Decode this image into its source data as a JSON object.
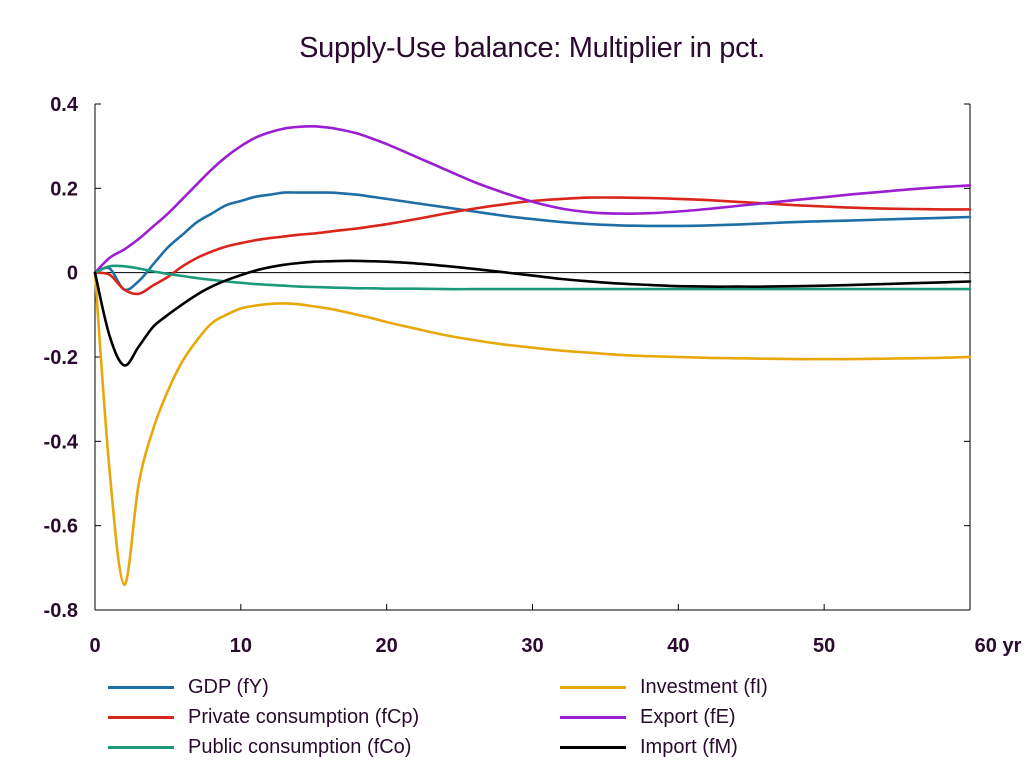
{
  "chart_data": {
    "type": "line",
    "title": "Supply-Use balance: Multiplier in pct.",
    "xlabel": "",
    "ylabel": "",
    "x_unit_label": "yr",
    "xlim": [
      0,
      60
    ],
    "ylim": [
      -0.8,
      0.4
    ],
    "x_ticks": [
      0,
      10,
      20,
      30,
      40,
      50,
      60
    ],
    "x_tick_labels": [
      "0",
      "10",
      "20",
      "30",
      "40",
      "50",
      "60 yr"
    ],
    "y_ticks": [
      0.4,
      0.2,
      0,
      -0.2,
      -0.4,
      -0.6,
      -0.8
    ],
    "y_tick_labels": [
      "0.4",
      "0.2",
      "0",
      "-0.2",
      "-0.4",
      "-0.6",
      "-0.8"
    ],
    "grid": false,
    "zero_line": true,
    "legend_position": "bottom",
    "x": [
      0,
      1,
      2,
      3,
      4,
      5,
      6,
      7,
      8,
      9,
      10,
      11,
      12,
      13,
      14,
      15,
      16,
      17,
      18,
      19,
      20,
      22,
      24,
      26,
      28,
      30,
      32,
      34,
      36,
      38,
      40,
      42,
      44,
      46,
      48,
      50,
      52,
      54,
      56,
      58,
      60
    ],
    "series": [
      {
        "name": "GDP (fY)",
        "color": "#1f6fa6",
        "values": [
          0,
          0.01,
          -0.04,
          -0.02,
          0.02,
          0.06,
          0.09,
          0.12,
          0.14,
          0.16,
          0.17,
          0.18,
          0.185,
          0.19,
          0.19,
          0.19,
          0.19,
          0.188,
          0.185,
          0.18,
          0.175,
          0.165,
          0.155,
          0.145,
          0.135,
          0.127,
          0.12,
          0.115,
          0.112,
          0.111,
          0.111,
          0.112,
          0.114,
          0.117,
          0.12,
          0.122,
          0.124,
          0.126,
          0.128,
          0.13,
          0.132
        ]
      },
      {
        "name": "Investment (fI)",
        "color": "#e8a80a",
        "values": [
          0,
          -0.47,
          -0.74,
          -0.5,
          -0.37,
          -0.28,
          -0.21,
          -0.16,
          -0.12,
          -0.1,
          -0.085,
          -0.078,
          -0.074,
          -0.073,
          -0.075,
          -0.08,
          -0.085,
          -0.092,
          -0.1,
          -0.108,
          -0.117,
          -0.133,
          -0.148,
          -0.16,
          -0.17,
          -0.178,
          -0.185,
          -0.19,
          -0.195,
          -0.198,
          -0.2,
          -0.202,
          -0.203,
          -0.204,
          -0.205,
          -0.205,
          -0.205,
          -0.204,
          -0.203,
          -0.202,
          -0.2
        ]
      },
      {
        "name": "Private consumption (fCp)",
        "color": "#d9261c",
        "values": [
          0,
          -0.005,
          -0.04,
          -0.05,
          -0.03,
          -0.01,
          0.015,
          0.035,
          0.05,
          0.062,
          0.07,
          0.077,
          0.082,
          0.086,
          0.09,
          0.093,
          0.097,
          0.101,
          0.105,
          0.11,
          0.115,
          0.127,
          0.14,
          0.152,
          0.162,
          0.17,
          0.175,
          0.178,
          0.178,
          0.177,
          0.175,
          0.172,
          0.168,
          0.164,
          0.16,
          0.157,
          0.154,
          0.152,
          0.151,
          0.15,
          0.15
        ]
      },
      {
        "name": "Export (fE)",
        "color": "#9b1fd0",
        "values": [
          0,
          0.035,
          0.055,
          0.08,
          0.11,
          0.14,
          0.175,
          0.21,
          0.245,
          0.275,
          0.3,
          0.32,
          0.333,
          0.342,
          0.346,
          0.347,
          0.344,
          0.338,
          0.33,
          0.318,
          0.305,
          0.275,
          0.245,
          0.215,
          0.19,
          0.168,
          0.152,
          0.143,
          0.14,
          0.141,
          0.145,
          0.151,
          0.158,
          0.165,
          0.172,
          0.179,
          0.186,
          0.192,
          0.198,
          0.203,
          0.207
        ]
      },
      {
        "name": "Public consumption (fCo)",
        "color": "#1a9a7a",
        "values": [
          0,
          0.015,
          0.015,
          0.01,
          0.003,
          -0.003,
          -0.008,
          -0.013,
          -0.017,
          -0.021,
          -0.024,
          -0.027,
          -0.029,
          -0.031,
          -0.033,
          -0.034,
          -0.035,
          -0.036,
          -0.037,
          -0.037,
          -0.038,
          -0.038,
          -0.039,
          -0.039,
          -0.039,
          -0.039,
          -0.039,
          -0.039,
          -0.039,
          -0.039,
          -0.039,
          -0.039,
          -0.039,
          -0.039,
          -0.039,
          -0.039,
          -0.039,
          -0.039,
          -0.039,
          -0.039,
          -0.039
        ]
      },
      {
        "name": "Import (fM)",
        "color": "#000000",
        "values": [
          0,
          -0.15,
          -0.22,
          -0.175,
          -0.128,
          -0.1,
          -0.075,
          -0.052,
          -0.033,
          -0.018,
          -0.006,
          0.005,
          0.013,
          0.019,
          0.023,
          0.026,
          0.027,
          0.028,
          0.028,
          0.027,
          0.026,
          0.022,
          0.016,
          0.009,
          0.001,
          -0.007,
          -0.015,
          -0.021,
          -0.026,
          -0.029,
          -0.032,
          -0.033,
          -0.033,
          -0.033,
          -0.032,
          -0.031,
          -0.029,
          -0.027,
          -0.025,
          -0.023,
          -0.021
        ]
      }
    ]
  },
  "legend": {
    "items": [
      {
        "label": "GDP (fY)",
        "color": "#1f6fa6"
      },
      {
        "label": "Investment (fI)",
        "color": "#e8a80a"
      },
      {
        "label": "Private consumption (fCp)",
        "color": "#d9261c"
      },
      {
        "label": "Export (fE)",
        "color": "#9b1fd0"
      },
      {
        "label": "Public consumption (fCo)",
        "color": "#1a9a7a"
      },
      {
        "label": "Import (fM)",
        "color": "#000000"
      }
    ]
  }
}
